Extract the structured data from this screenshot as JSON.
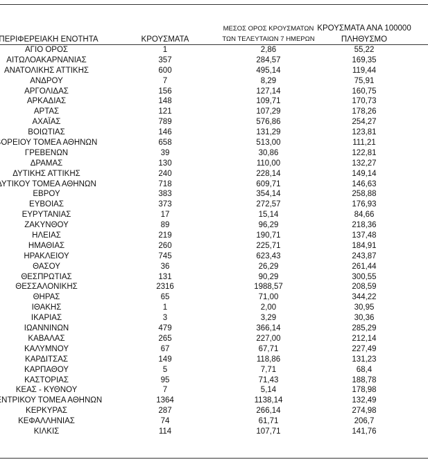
{
  "headers": {
    "region": "ΠΕΡΙΦΕΡΕΙΑΚΗ ΕΝΟΤΗΤΑ",
    "cases": "ΚΡΟΥΣΜΑΤΑ",
    "avg_line1": "ΜΕΣΟΣ ΟΡΟΣ ΚΡΟΥΣΜΑΤΩΝ",
    "avg_line2": "ΤΩΝ ΤΕΛΕΥΤΑΙΩΝ 7 ΗΜΕΡΩΝ",
    "per100k_line1": "ΚΡΟΥΣΜΑΤΑ ΑΝΑ 100000",
    "per100k_line2": "ΠΛΗΘΥΣΜΟ"
  },
  "rows": [
    [
      "ΑΓΙΟ ΟΡΟΣ",
      "1",
      "2,86",
      "55,22"
    ],
    [
      "ΑΙΤΩΛΟΑΚΑΡΝΑΝΙΑΣ",
      "357",
      "284,57",
      "169,35"
    ],
    [
      "ΑΝΑΤΟΛΙΚΗΣ ΑΤΤΙΚΗΣ",
      "600",
      "495,14",
      "119,44"
    ],
    [
      "ΑΝΔΡΟΥ",
      "7",
      "8,29",
      "75,91"
    ],
    [
      "ΑΡΓΟΛΙΔΑΣ",
      "156",
      "127,14",
      "160,75"
    ],
    [
      "ΑΡΚΑΔΙΑΣ",
      "148",
      "109,71",
      "170,73"
    ],
    [
      "ΑΡΤΑΣ",
      "121",
      "107,29",
      "178,26"
    ],
    [
      "ΑΧΑΪΑΣ",
      "789",
      "576,86",
      "254,27"
    ],
    [
      "ΒΟΙΩΤΙΑΣ",
      "146",
      "131,29",
      "123,81"
    ],
    [
      "ΒΟΡΕΙΟΥ ΤΟΜΕΑ ΑΘΗΝΩΝ",
      "658",
      "513,00",
      "111,21"
    ],
    [
      "ΓΡΕΒΕΝΩΝ",
      "39",
      "30,86",
      "122,81"
    ],
    [
      "ΔΡΑΜΑΣ",
      "130",
      "110,00",
      "132,27"
    ],
    [
      "ΔΥΤΙΚΗΣ ΑΤΤΙΚΗΣ",
      "240",
      "228,14",
      "149,14"
    ],
    [
      "ΔΥΤΙΚΟΥ ΤΟΜΕΑ ΑΘΗΝΩΝ",
      "718",
      "609,71",
      "146,63"
    ],
    [
      "ΕΒΡΟΥ",
      "383",
      "354,14",
      "258,88"
    ],
    [
      "ΕΥΒΟΙΑΣ",
      "373",
      "272,57",
      "176,93"
    ],
    [
      "ΕΥΡΥΤΑΝΙΑΣ",
      "17",
      "15,14",
      "84,66"
    ],
    [
      "ΖΑΚΥΝΘΟΥ",
      "89",
      "96,29",
      "218,36"
    ],
    [
      "ΗΛΕΙΑΣ",
      "219",
      "190,71",
      "137,48"
    ],
    [
      "ΗΜΑΘΙΑΣ",
      "260",
      "225,71",
      "184,91"
    ],
    [
      "ΗΡΑΚΛΕΙΟΥ",
      "745",
      "623,43",
      "243,87"
    ],
    [
      "ΘΑΣΟΥ",
      "36",
      "26,29",
      "261,44"
    ],
    [
      "ΘΕΣΠΡΩΤΙΑΣ",
      "131",
      "90,29",
      "300,55"
    ],
    [
      "ΘΕΣΣΑΛΟΝΙΚΗΣ",
      "2316",
      "1988,57",
      "208,59"
    ],
    [
      "ΘΗΡΑΣ",
      "65",
      "71,00",
      "344,22"
    ],
    [
      "ΙΘΑΚΗΣ",
      "1",
      "2,00",
      "30,95"
    ],
    [
      "ΙΚΑΡΙΑΣ",
      "3",
      "3,29",
      "30,36"
    ],
    [
      "ΙΩΑΝΝΙΝΩΝ",
      "479",
      "366,14",
      "285,29"
    ],
    [
      "ΚΑΒΑΛΑΣ",
      "265",
      "227,00",
      "212,14"
    ],
    [
      "ΚΑΛΥΜΝΟΥ",
      "67",
      "67,71",
      "227,49"
    ],
    [
      "ΚΑΡΔΙΤΣΑΣ",
      "149",
      "118,86",
      "131,23"
    ],
    [
      "ΚΑΡΠΑΘΟΥ",
      "5",
      "7,71",
      "68,4"
    ],
    [
      "ΚΑΣΤΟΡΙΑΣ",
      "95",
      "71,43",
      "188,78"
    ],
    [
      "ΚΕΑΣ - ΚΥΘΝΟΥ",
      "7",
      "5,14",
      "178,98"
    ],
    [
      "ΚΕΝΤΡΙΚΟΥ ΤΟΜΕΑ ΑΘΗΝΩΝ",
      "1364",
      "1138,14",
      "132,49"
    ],
    [
      "ΚΕΡΚΥΡΑΣ",
      "287",
      "266,14",
      "274,98"
    ],
    [
      "ΚΕΦΑΛΛΗΝΙΑΣ",
      "74",
      "61,71",
      "206,7"
    ],
    [
      "ΚΙΛΚΙΣ",
      "114",
      "107,71",
      "141,76"
    ]
  ]
}
